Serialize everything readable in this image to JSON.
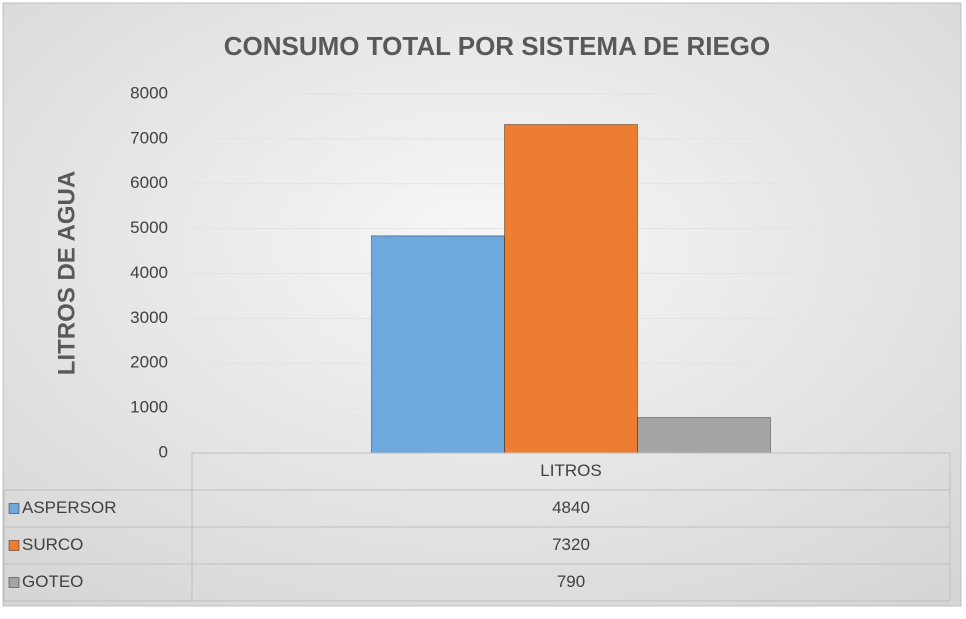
{
  "chart_data": {
    "type": "bar",
    "title": "CONSUMO TOTAL POR SISTEMA DE RIEGO",
    "y_label": "LITROS DE AGUA",
    "categories": [
      "LITROS"
    ],
    "series": [
      {
        "name": "ASPERSOR",
        "color": "#6fa8dc",
        "values": [
          4840
        ]
      },
      {
        "name": "SURCO",
        "color": "#ed7d31",
        "values": [
          7320
        ]
      },
      {
        "name": "GOTEO",
        "color": "#a5a5a5",
        "values": [
          790
        ]
      }
    ],
    "ylim": [
      0,
      8000
    ],
    "yticks": [
      0,
      1000,
      2000,
      3000,
      4000,
      5000,
      6000,
      7000,
      8000
    ],
    "grid": true
  }
}
